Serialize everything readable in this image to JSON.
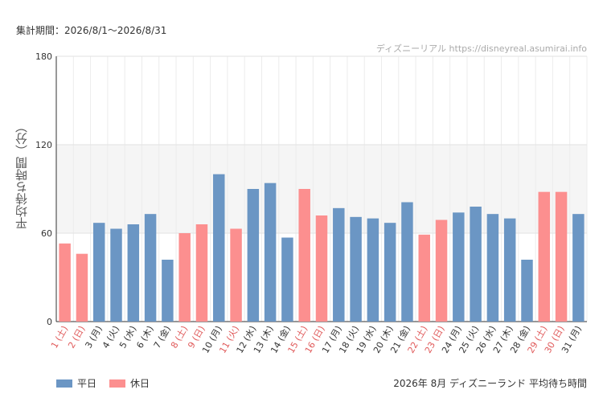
{
  "header": {
    "period": "集計期間：2026/8/1〜2026/8/31",
    "watermark": "ディズニーリアル https://disneyreal.asumirai.info"
  },
  "footer": {
    "caption": "2026年 8月 ディズニーランド 平均待ち時間"
  },
  "colors": {
    "weekday": "#6b96c4",
    "holiday": "#fc8f8f",
    "holiday_label": "#e05a5a",
    "band": "#f5f5f5"
  },
  "chart_data": {
    "type": "bar",
    "ylabel": "平均待ち時間（分）",
    "ylim": [
      0,
      180
    ],
    "yticks": [
      0,
      60,
      120,
      180
    ],
    "grid": true,
    "shaded_band": [
      60,
      120
    ],
    "legend": {
      "placement": "bottom-left",
      "entries": [
        {
          "name": "平日",
          "color": "#6b96c4"
        },
        {
          "name": "休日",
          "color": "#fc8f8f"
        }
      ]
    },
    "categories": [
      "1 (土)",
      "2 (日)",
      "3 (月)",
      "4 (火)",
      "5 (水)",
      "6 (木)",
      "7 (金)",
      "8 (土)",
      "9 (日)",
      "10 (月)",
      "11 (火)",
      "12 (水)",
      "13 (木)",
      "14 (金)",
      "15 (土)",
      "16 (日)",
      "17 (月)",
      "18 (火)",
      "19 (水)",
      "20 (木)",
      "21 (金)",
      "22 (土)",
      "23 (日)",
      "24 (月)",
      "25 (火)",
      "26 (水)",
      "27 (木)",
      "28 (金)",
      "29 (土)",
      "30 (日)",
      "31 (月)"
    ],
    "values": [
      53,
      46,
      67,
      63,
      66,
      73,
      42,
      60,
      66,
      100,
      63,
      90,
      94,
      57,
      90,
      72,
      77,
      71,
      70,
      67,
      81,
      59,
      69,
      74,
      78,
      73,
      70,
      42,
      88,
      88,
      73
    ],
    "holiday": [
      true,
      true,
      false,
      false,
      false,
      false,
      false,
      true,
      true,
      false,
      true,
      false,
      false,
      false,
      true,
      true,
      false,
      false,
      false,
      false,
      false,
      true,
      true,
      false,
      false,
      false,
      false,
      false,
      true,
      true,
      false
    ]
  }
}
